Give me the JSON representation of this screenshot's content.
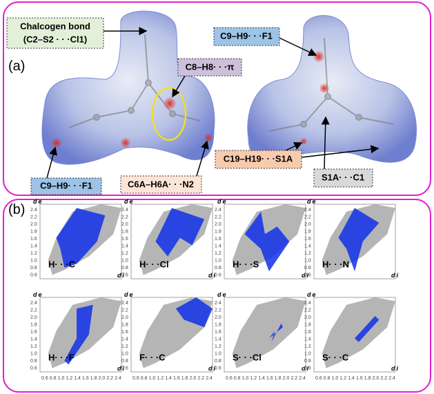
{
  "panel_a": {
    "label": "(a)",
    "callouts": {
      "chalcogen_title": "Chalcogen bond",
      "chalcogen_detail": "(C2–S2 · · ·Cl1)",
      "c8_h8": "C8–H8· · ·π",
      "c9_h9_right": "C9–H9· · ·F1",
      "c9_h9_left": "C9–H9· · ·F1",
      "c6a_h6a": "C6A–H6A· · ·N2",
      "c19_h19": "C19–H19· · ·S1A",
      "s1a_c1": "S1A· · ·C1"
    }
  },
  "panel_b": {
    "label": "(b)",
    "plots": [
      "H· · ·C",
      "H· · ·Cl",
      "H· · ·S",
      "H· · ·N",
      "H· · ·F",
      "F· · ·C",
      "S· · ·Cl",
      "S· · ·C"
    ],
    "y_axis": {
      "symbol": "d",
      "subscript": "e"
    },
    "x_axis": {
      "symbol": "d",
      "subscript": "i"
    },
    "y_ticks": [
      "2.4",
      "2.2",
      "2.0",
      "1.8",
      "1.6",
      "1.4",
      "1.2",
      "1.0",
      "0.8",
      "0.6"
    ],
    "x_ticks": [
      "0.6",
      "0.8",
      "1.0",
      "1.2",
      "1.4",
      "1.6",
      "1.8",
      "2.0",
      "2.2",
      "2.4"
    ]
  }
}
